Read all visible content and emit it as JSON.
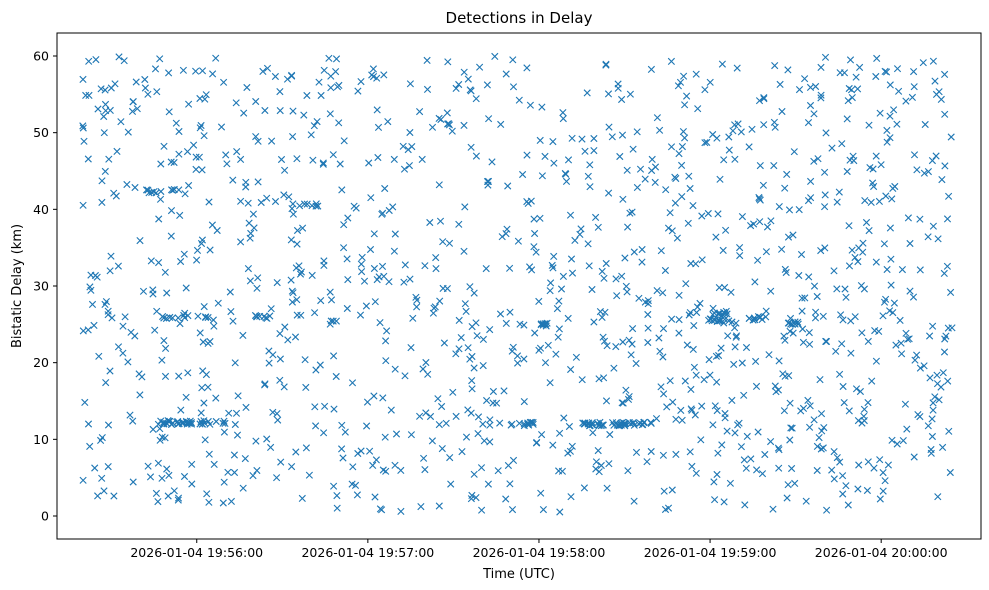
{
  "chart_data": {
    "type": "scatter",
    "title": "Detections in Delay",
    "xlabel": "Time (UTC)",
    "ylabel": "Bistatic Delay (km)",
    "marker": "x",
    "marker_color": "#1f77b4",
    "x_start_time": "2026-01-04 19:55:20",
    "x_end_time": "2026-01-04 20:00:25",
    "xlim": [
      "2026-01-04 19:55:11",
      "2026-01-04 20:00:35"
    ],
    "ylim": [
      -3,
      63
    ],
    "xticks": [
      "2026-01-04 19:56:00",
      "2026-01-04 19:57:00",
      "2026-01-04 19:58:00",
      "2026-01-04 19:59:00",
      "2026-01-04 20:00:00"
    ],
    "yticks": [
      0,
      10,
      20,
      30,
      40,
      50,
      60
    ],
    "grid": false,
    "legend": "none",
    "clusters": [
      {
        "x_from": "2026-01-04 19:55:45",
        "x_to": "2026-01-04 19:56:10",
        "y": 12.2,
        "count": 40
      },
      {
        "x_from": "2026-01-04 19:58:15",
        "x_to": "2026-01-04 19:58:40",
        "y": 12.0,
        "count": 45
      },
      {
        "x_from": "2026-01-04 19:57:50",
        "x_to": "2026-01-04 19:57:58",
        "y": 12.0,
        "count": 12
      },
      {
        "x_from": "2026-01-04 19:58:59",
        "x_to": "2026-01-04 19:59:08",
        "y": 25.5,
        "count": 14
      },
      {
        "x_from": "2026-01-04 19:59:13",
        "x_to": "2026-01-04 19:59:20",
        "y": 25.8,
        "count": 10
      },
      {
        "x_from": "2026-01-04 19:58:58",
        "x_to": "2026-01-04 19:59:07",
        "y": 26.5,
        "count": 10
      },
      {
        "x_from": "2026-01-04 19:55:48",
        "x_to": "2026-01-04 19:56:05",
        "y": 26.0,
        "count": 12
      },
      {
        "x_from": "2026-01-04 19:56:20",
        "x_to": "2026-01-04 19:56:30",
        "y": 26.0,
        "count": 8
      },
      {
        "x_from": "2026-01-04 19:55:42",
        "x_to": "2026-01-04 19:55:55",
        "y": 42.3,
        "count": 10
      },
      {
        "x_from": "2026-01-04 19:58:00",
        "x_to": "2026-01-04 19:58:03",
        "y": 25.0,
        "count": 8
      },
      {
        "x_from": "2026-01-04 19:59:27",
        "x_to": "2026-01-04 19:59:31",
        "y": 25.2,
        "count": 8
      },
      {
        "x_from": "2026-01-04 19:56:33",
        "x_to": "2026-01-04 19:56:43",
        "y": 40.5,
        "count": 8
      }
    ],
    "background_noise": {
      "x_from": "2026-01-04 19:55:20",
      "x_to": "2026-01-04 20:00:25",
      "y_range": [
        0.5,
        60
      ],
      "count": 1250
    }
  }
}
